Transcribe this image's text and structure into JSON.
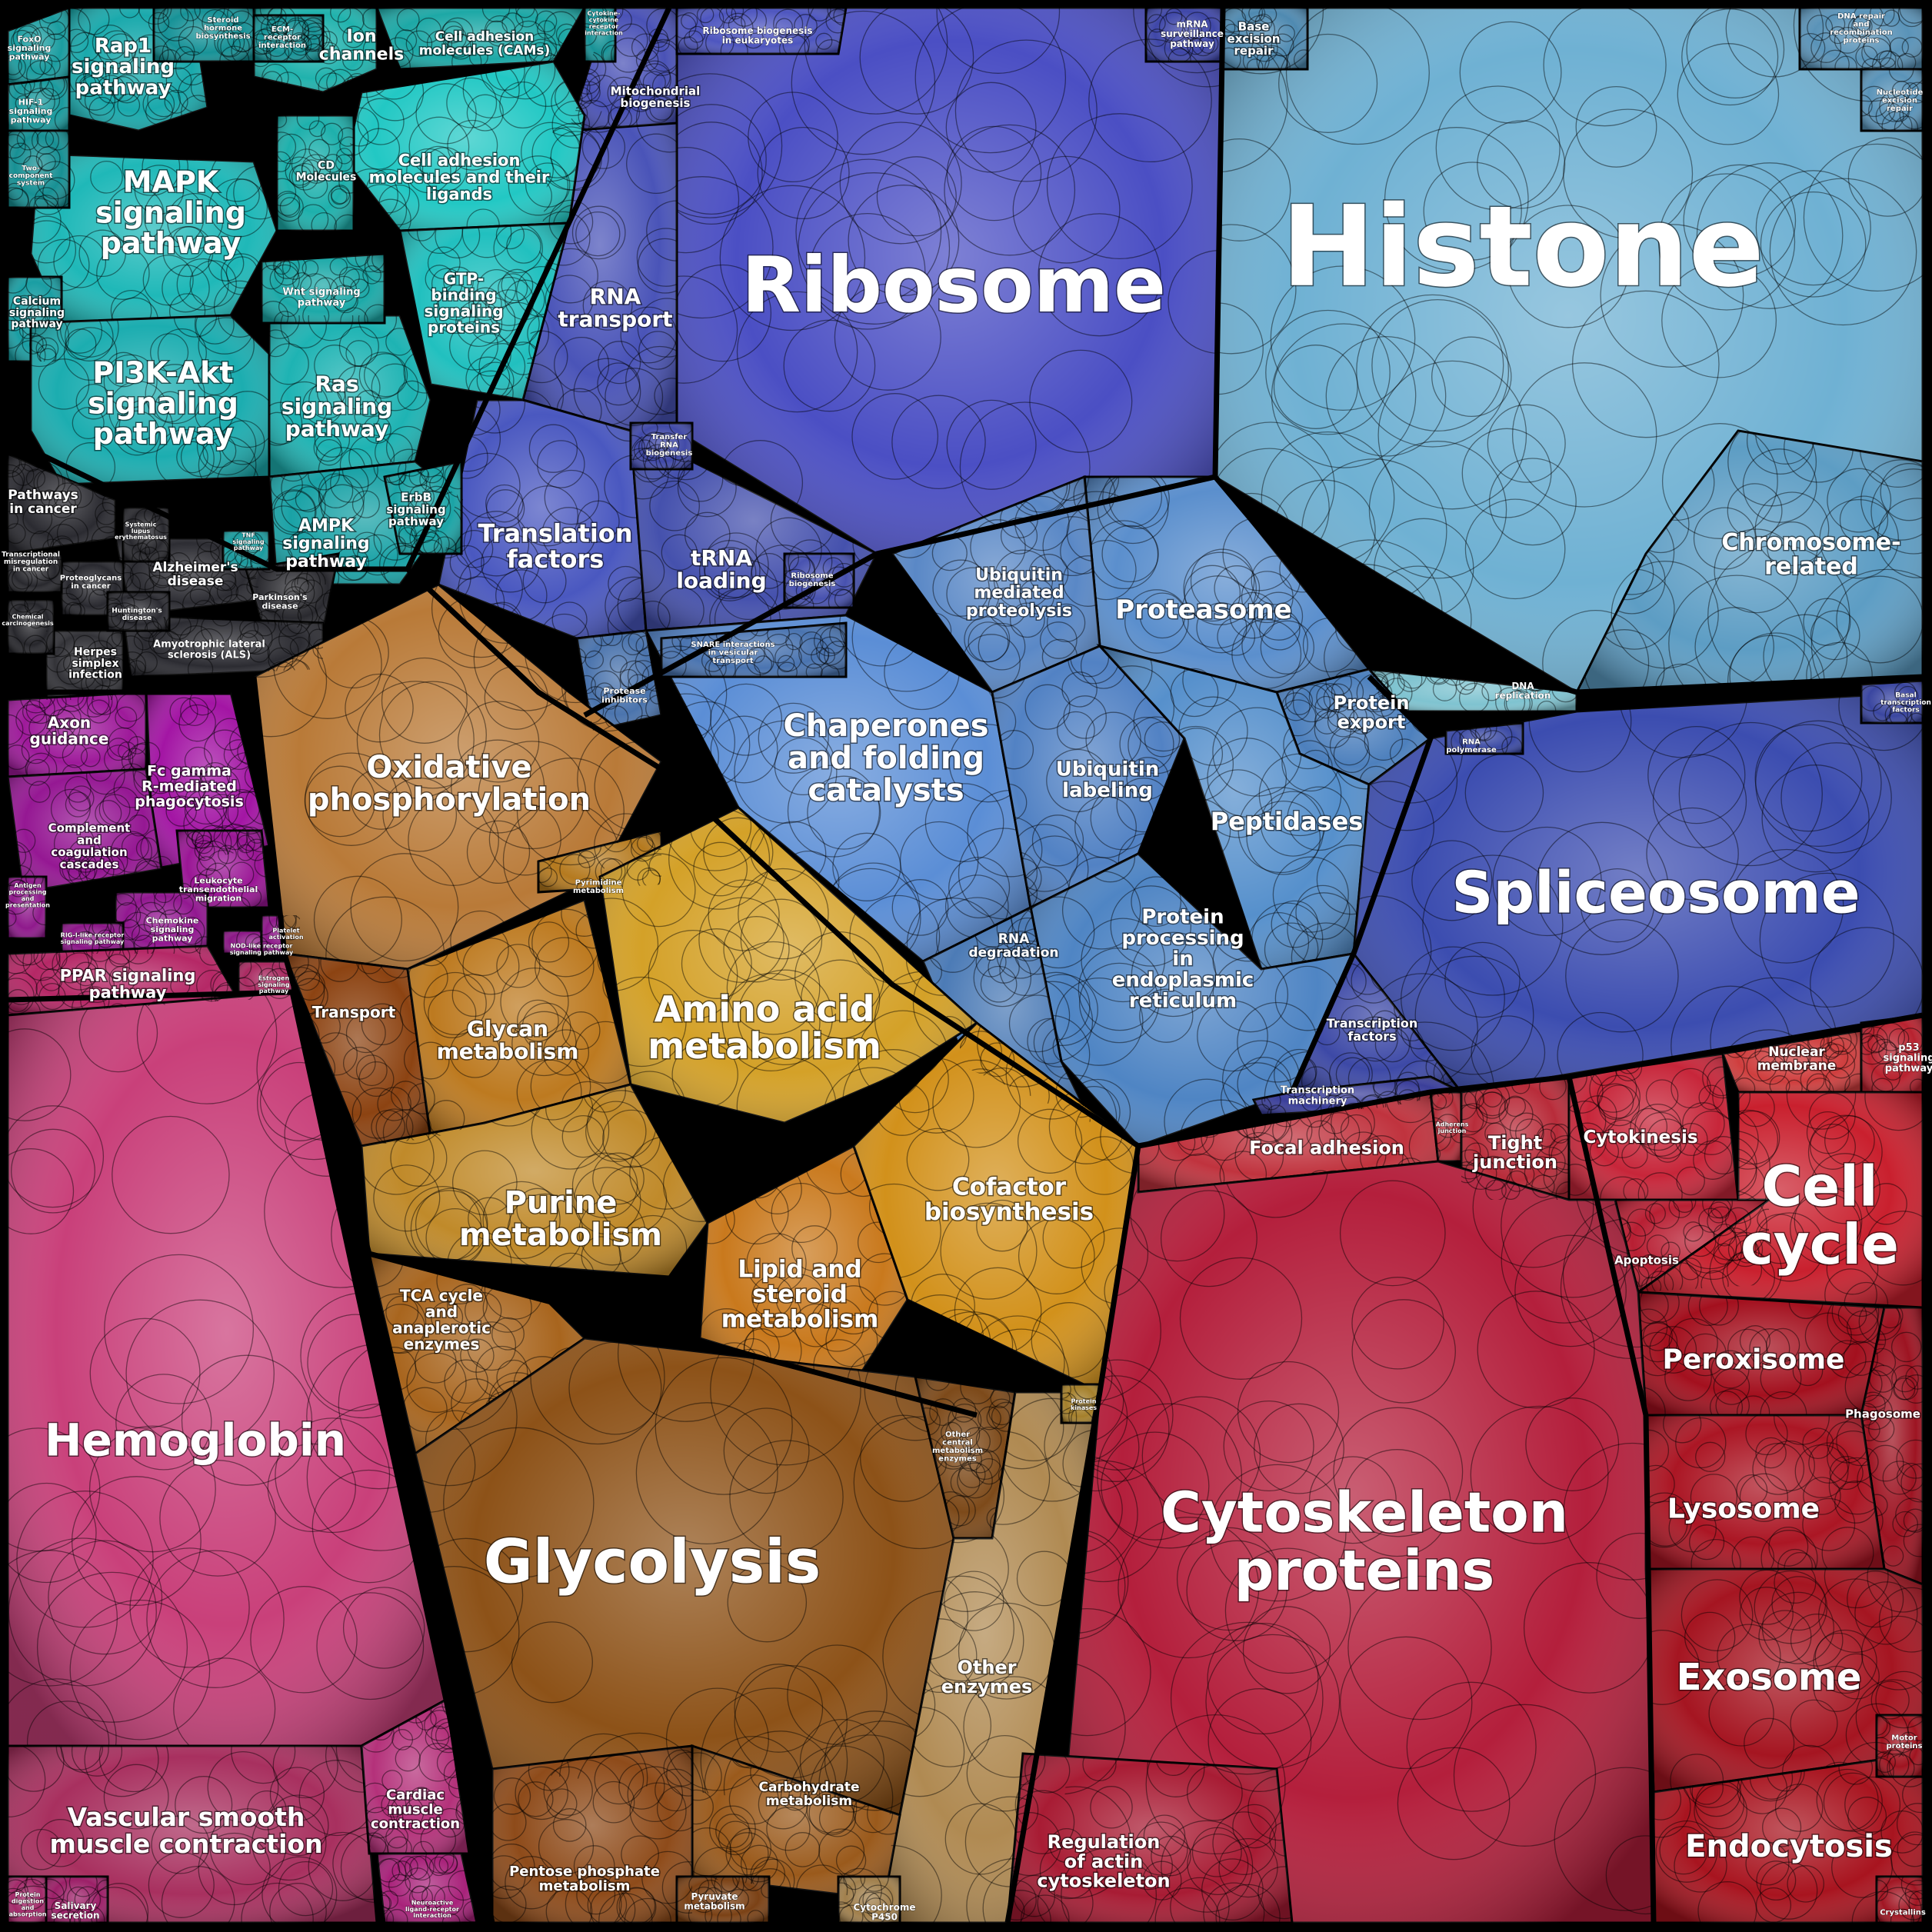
{
  "regions": [
    {
      "id": "histone",
      "label": "Histone",
      "color": "#6fb1d3"
    },
    {
      "id": "chromosome-related",
      "label": "Chromosome-related",
      "color": "#5d9dc4"
    },
    {
      "id": "base-excision-repair",
      "label": "Base excision repair",
      "color": "#4f8ab1"
    },
    {
      "id": "dna-repair",
      "label": "DNA repair and recombination proteins",
      "color": "#5a93b8"
    },
    {
      "id": "nucleotide-excision-repair",
      "label": "Nucleotide excision repair",
      "color": "#5a93b8"
    },
    {
      "id": "dna-replication",
      "label": "DNA replication",
      "color": "#7fc3d0"
    },
    {
      "id": "ribosome",
      "label": "Ribosome",
      "color": "#4b4fc4"
    },
    {
      "id": "rna-transport",
      "label": "RNA transport",
      "color": "#4a54b8"
    },
    {
      "id": "mitochondrial-biogenesis",
      "label": "Mitochondrial biogenesis",
      "color": "#4a52b6"
    },
    {
      "id": "ribosome-biogenesis-euk",
      "label": "Ribosome biogenesis in eukaryotes",
      "color": "#4e56bf"
    },
    {
      "id": "mrna-surveillance",
      "label": "mRNA surveillance pathway",
      "color": "#3f47a8"
    },
    {
      "id": "translation-factors",
      "label": "Translation factors",
      "color": "#4a58c0"
    },
    {
      "id": "trna-loading",
      "label": "tRNA loading",
      "color": "#4551ad"
    },
    {
      "id": "transfer-rna-biogenesis",
      "label": "Transfer RNA biogenesis",
      "color": "#414aa8"
    },
    {
      "id": "ribosome-biogenesis",
      "label": "Ribosome biogenesis",
      "color": "#4852b0"
    },
    {
      "id": "proteasome",
      "label": "Proteasome",
      "color": "#5b8fcd"
    },
    {
      "id": "ubiquitin-mediated",
      "label": "Ubiquitin mediated proteolysis",
      "color": "#5a88c6"
    },
    {
      "id": "chaperones",
      "label": "Chaperones and folding catalysts",
      "color": "#5b8ed6"
    },
    {
      "id": "ubiquitin-labeling",
      "label": "Ubiquitin labeling",
      "color": "#5282c4"
    },
    {
      "id": "protein-export",
      "label": "Protein export",
      "color": "#4d80bd"
    },
    {
      "id": "peptidases",
      "label": "Peptidases",
      "color": "#5690cc"
    },
    {
      "id": "protein-processing-er",
      "label": "Protein processing in endoplasmic reticulum",
      "color": "#4f85c4"
    },
    {
      "id": "rna-degradation",
      "label": "RNA degradation",
      "color": "#4c7bb6"
    },
    {
      "id": "protease-inhibitors",
      "label": "Protease inhibitors",
      "color": "#4b74ad"
    },
    {
      "id": "snare",
      "label": "SNARE interactions in vesicular transport",
      "color": "#4a74b0"
    },
    {
      "id": "spliceosome",
      "label": "Spliceosome",
      "color": "#3c4db0"
    },
    {
      "id": "transcription-factors",
      "label": "Transcription factors",
      "color": "#3d49a6"
    },
    {
      "id": "transcription-machinery",
      "label": "Transcription machinery",
      "color": "#3b3f9a"
    },
    {
      "id": "rna-polymerase",
      "label": "RNA polymerase",
      "color": "#3b4aa4"
    },
    {
      "id": "basal-transcription",
      "label": "Basal transcription factors",
      "color": "#3a46a0"
    },
    {
      "id": "mapk",
      "label": "MAPK signaling pathway",
      "color": "#1fb8b8"
    },
    {
      "id": "rap1",
      "label": "Rap1 signaling pathway",
      "color": "#1aa9ac"
    },
    {
      "id": "foxo",
      "label": "FoxO signaling pathway",
      "color": "#1b9da0"
    },
    {
      "id": "hif1",
      "label": "HIF-1 signaling pathway",
      "color": "#1a9a9d"
    },
    {
      "id": "two-component",
      "label": "Two-component system",
      "color": "#179094"
    },
    {
      "id": "calcium",
      "label": "Calcium signaling pathway",
      "color": "#1a9ea3"
    },
    {
      "id": "pi3k-akt",
      "label": "PI3K-Akt signaling pathway",
      "color": "#1cadb0"
    },
    {
      "id": "ras",
      "label": "Ras signaling pathway",
      "color": "#1eb3b3"
    },
    {
      "id": "ampk",
      "label": "AMPK signaling pathway",
      "color": "#1aa2a6"
    },
    {
      "id": "ion-channels",
      "label": "Ion channels",
      "color": "#20b2ad"
    },
    {
      "id": "cams",
      "label": "Cell adhesion molecules (CAMs)",
      "color": "#1da8a6"
    },
    {
      "id": "cell-adhesion-ligands",
      "label": "Cell adhesion molecules and their ligands",
      "color": "#22c8c4"
    },
    {
      "id": "cd-molecules",
      "label": "CD Molecules",
      "color": "#1eb0ac"
    },
    {
      "id": "gtp-binding",
      "label": "GTP-binding signaling proteins",
      "color": "#21c0bf"
    },
    {
      "id": "wnt",
      "label": "Wnt signaling pathway",
      "color": "#1da9a8"
    },
    {
      "id": "erbb",
      "label": "ErbB signaling pathway",
      "color": "#1ba4a6"
    },
    {
      "id": "steroid-hormone",
      "label": "Steroid hormone biosynthesis",
      "color": "#179297"
    },
    {
      "id": "ecm-receptor",
      "label": "ECM-receptor interaction",
      "color": "#189498"
    },
    {
      "id": "cytokine",
      "label": "Cytokine-cytokine receptor interaction",
      "color": "#179296"
    },
    {
      "id": "pathways-in-cancer",
      "label": "Pathways in cancer",
      "color": "#2b2b31"
    },
    {
      "id": "alzheimers",
      "label": "Alzheimer's disease",
      "color": "#2d2d33"
    },
    {
      "id": "parkinsons",
      "label": "Parkinson's disease",
      "color": "#2a2a2f"
    },
    {
      "id": "als",
      "label": "Amyotrophic lateral sclerosis (ALS)",
      "color": "#2c2c32"
    },
    {
      "id": "herpes",
      "label": "Herpes simplex infection",
      "color": "#333338"
    },
    {
      "id": "proteoglycans",
      "label": "Proteoglycans in cancer",
      "color": "#2a2a30"
    },
    {
      "id": "transcriptional-misregulation",
      "label": "Transcriptional misregulation in cancer",
      "color": "#29292e"
    },
    {
      "id": "huntingtons",
      "label": "Huntington's disease",
      "color": "#2b2b31"
    },
    {
      "id": "chemical-carcinogenesis",
      "label": "Chemical carcinogenesis",
      "color": "#27272c"
    },
    {
      "id": "tnf",
      "label": "TNF signaling pathway",
      "color": "#1b9b9e"
    },
    {
      "id": "systemic-lupus",
      "label": "Systemic lupus erythematosus",
      "color": "#29292e"
    },
    {
      "id": "axon-guidance",
      "label": "Axon guidance",
      "color": "#9e1a9a"
    },
    {
      "id": "fc-gamma",
      "label": "Fc gamma R-mediated phagocytosis",
      "color": "#a315a4"
    },
    {
      "id": "complement",
      "label": "Complement and coagulation cascades",
      "color": "#951893"
    },
    {
      "id": "antigen",
      "label": "Antigen processing and presentation",
      "color": "#8f1a8c"
    },
    {
      "id": "leukocyte",
      "label": "Leukocyte transendothelial migration",
      "color": "#9a1695"
    },
    {
      "id": "chemokine",
      "label": "Chemokine signaling pathway",
      "color": "#921890"
    },
    {
      "id": "rig-i",
      "label": "RIG-I-like receptor signaling pathway",
      "color": "#8c1788"
    },
    {
      "id": "nod",
      "label": "NOD-like receptor signaling pathway",
      "color": "#8b1886"
    },
    {
      "id": "platelet",
      "label": "Platelet activation",
      "color": "#8d1889"
    },
    {
      "id": "ppar",
      "label": "PPAR signaling pathway",
      "color": "#b52866"
    },
    {
      "id": "estrogen",
      "label": "Estrogen signaling pathway",
      "color": "#a92a61"
    },
    {
      "id": "hemoglobin",
      "label": "Hemoglobin",
      "color": "#c9407a"
    },
    {
      "id": "vascular-smooth",
      "label": "Vascular smooth muscle contraction",
      "color": "#a8305f"
    },
    {
      "id": "cardiac-muscle",
      "label": "Cardiac muscle contraction",
      "color": "#b4317a"
    },
    {
      "id": "salivary",
      "label": "Salivary secretion",
      "color": "#9c2068"
    },
    {
      "id": "protein-digestion",
      "label": "Protein digestion and absorption",
      "color": "#a32a6a"
    },
    {
      "id": "neuroactive",
      "label": "Neuroactive ligand-receptor interaction",
      "color": "#a8227a"
    },
    {
      "id": "oxidative-phos",
      "label": "Oxidative phosphorylation",
      "color": "#b97a38"
    },
    {
      "id": "transport",
      "label": "Transport",
      "color": "#8c4312"
    },
    {
      "id": "glycan",
      "label": "Glycan metabolism",
      "color": "#bd7a20"
    },
    {
      "id": "pyrimidine",
      "label": "Pyrimidine metabolism",
      "color": "#b57a1f"
    },
    {
      "id": "amino-acid",
      "label": "Amino acid metabolism",
      "color": "#d4a128"
    },
    {
      "id": "purine",
      "label": "Purine metabolism",
      "color": "#c08a2a"
    },
    {
      "id": "lipid-steroid",
      "label": "Lipid and steroid metabolism",
      "color": "#c9791d"
    },
    {
      "id": "cofactor",
      "label": "Cofactor biosynthesis",
      "color": "#d2911b"
    },
    {
      "id": "tca",
      "label": "TCA cycle and anaplerotic enzymes",
      "color": "#a8651e"
    },
    {
      "id": "glycolysis",
      "label": "Glycolysis",
      "color": "#8d5218"
    },
    {
      "id": "other-central",
      "label": "Other central metabolism enzymes",
      "color": "#7d4a1a"
    },
    {
      "id": "other-enzymes",
      "label": "Other enzymes",
      "color": "#b08a52"
    },
    {
      "id": "carbohydrate",
      "label": "Carbohydrate metabolism",
      "color": "#9a5a1c"
    },
    {
      "id": "pentose-phosphate",
      "label": "Pentose phosphate metabolism",
      "color": "#8e4b1a"
    },
    {
      "id": "pyruvate",
      "label": "Pyruvate metabolism",
      "color": "#7b4216"
    },
    {
      "id": "cytochrome",
      "label": "Cytochrome P450",
      "color": "#a1804d"
    },
    {
      "id": "protein-kinases",
      "label": "Protein kinases",
      "color": "#a5802c"
    },
    {
      "id": "focal-adhesion",
      "label": "Focal adhesion",
      "color": "#c0333e"
    },
    {
      "id": "adherens",
      "label": "Adherens junction",
      "color": "#b32e3a"
    },
    {
      "id": "tight-junction",
      "label": "Tight junction",
      "color": "#b82c3a"
    },
    {
      "id": "cytokinesis",
      "label": "Cytokinesis",
      "color": "#c7263a"
    },
    {
      "id": "apoptosis",
      "label": "Apoptosis",
      "color": "#b81f33"
    },
    {
      "id": "nuclear-membrane",
      "label": "Nuclear membrane",
      "color": "#cf3e3e"
    },
    {
      "id": "p53",
      "label": "p53 signaling pathway",
      "color": "#b8222f"
    },
    {
      "id": "cell-cycle",
      "label": "Cell cycle",
      "color": "#c9202e"
    },
    {
      "id": "peroxisome",
      "label": "Peroxisome",
      "color": "#a3101e"
    },
    {
      "id": "phagosome",
      "label": "Phagosome",
      "color": "#9d1422"
    },
    {
      "id": "lysosome",
      "label": "Lysosome",
      "color": "#ab1624"
    },
    {
      "id": "exosome",
      "label": "Exosome",
      "color": "#a51521"
    },
    {
      "id": "endocytosis",
      "label": "Endocytosis",
      "color": "#a8141f"
    },
    {
      "id": "motor-proteins",
      "label": "Motor proteins",
      "color": "#a01420"
    },
    {
      "id": "crystallins",
      "label": "Crystallins",
      "color": "#a11623"
    },
    {
      "id": "cytoskeleton",
      "label": "Cytoskeleton proteins",
      "color": "#b41f3c"
    },
    {
      "id": "regulation-actin",
      "label": "Regulation of actin cytoskeleton",
      "color": "#a81c34"
    }
  ]
}
